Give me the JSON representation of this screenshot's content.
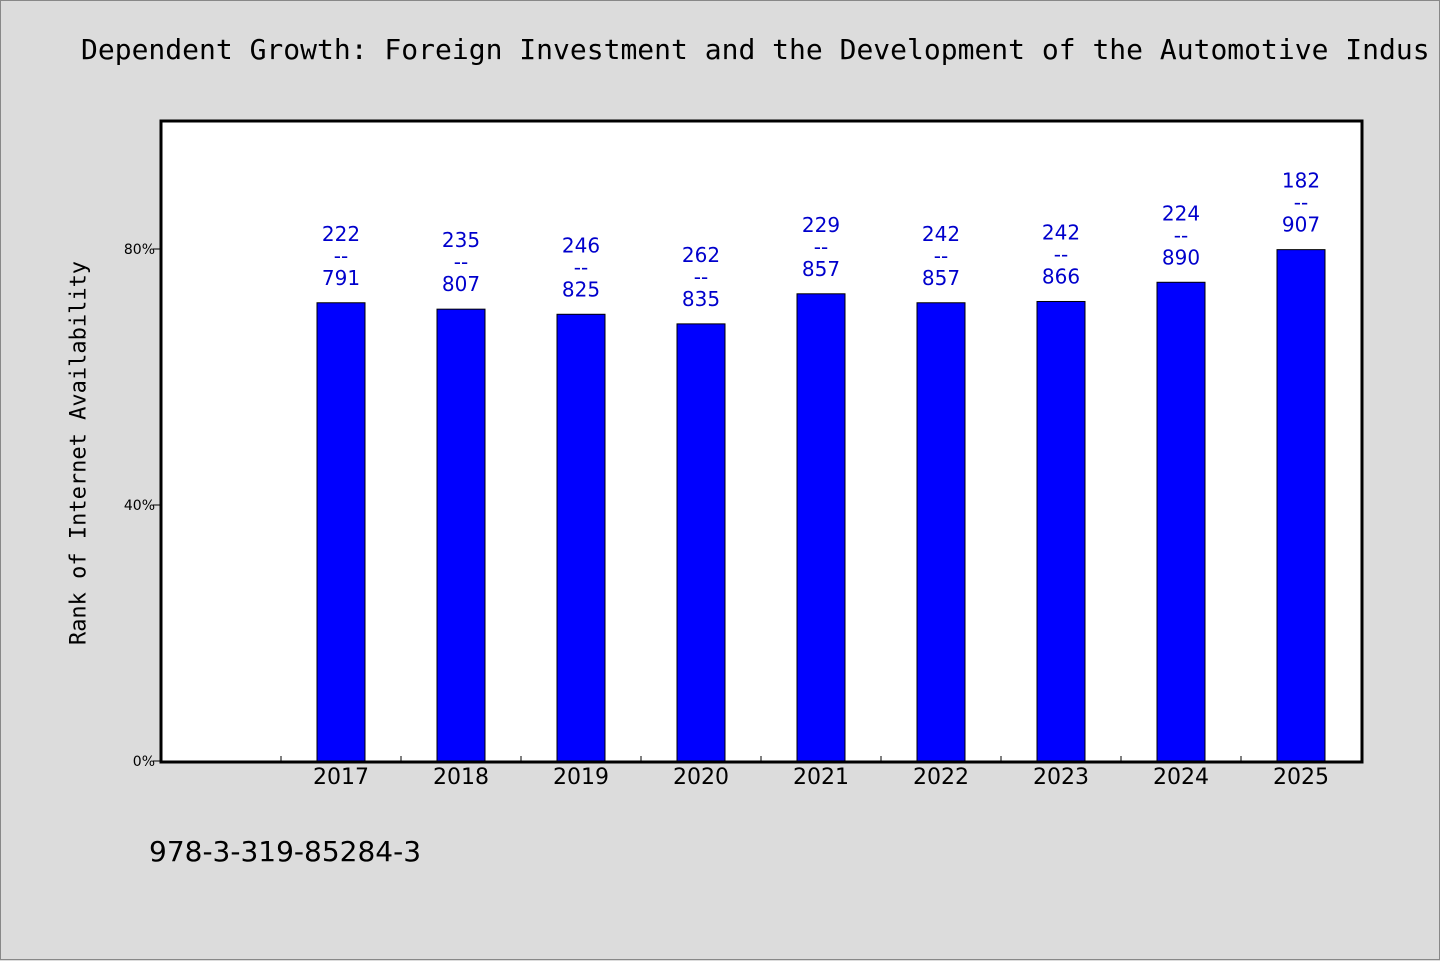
{
  "chart_data": {
    "type": "bar",
    "title": "Dependent Growth: Foreign Investment and the Development of the Automotive Indus",
    "xlabel": "",
    "ylabel": "Rank of Internet Availability",
    "categories": [
      "2017",
      "2018",
      "2019",
      "2020",
      "2021",
      "2022",
      "2023",
      "2024",
      "2025"
    ],
    "series": [
      {
        "values": [
          71.6,
          70.6,
          69.8,
          68.3,
          73.0,
          71.6,
          71.8,
          74.8,
          79.9
        ],
        "labels": [
          {
            "top": "222",
            "sep": "--",
            "bottom": "791"
          },
          {
            "top": "235",
            "sep": "--",
            "bottom": "807"
          },
          {
            "top": "246",
            "sep": "--",
            "bottom": "825"
          },
          {
            "top": "262",
            "sep": "--",
            "bottom": "835"
          },
          {
            "top": "229",
            "sep": "--",
            "bottom": "857"
          },
          {
            "top": "242",
            "sep": "--",
            "bottom": "857"
          },
          {
            "top": "242",
            "sep": "--",
            "bottom": "866"
          },
          {
            "top": "224",
            "sep": "--",
            "bottom": "890"
          },
          {
            "top": "182",
            "sep": "--",
            "bottom": "907"
          }
        ]
      }
    ],
    "ylim": [
      0,
      100
    ],
    "yticks": [
      {
        "value": 0,
        "label": "0%"
      },
      {
        "value": 40,
        "label": "40%"
      },
      {
        "value": 80,
        "label": "80%"
      }
    ],
    "grid": false,
    "legend": "none",
    "colors": {
      "bar": "#0000ff",
      "bar_outline": "#000000",
      "data_label": "#0000cc",
      "plot_bg": "#ffffff",
      "page_bg": "#dcdcdc"
    }
  },
  "footer": {
    "code": "978-3-319-85284-3"
  }
}
